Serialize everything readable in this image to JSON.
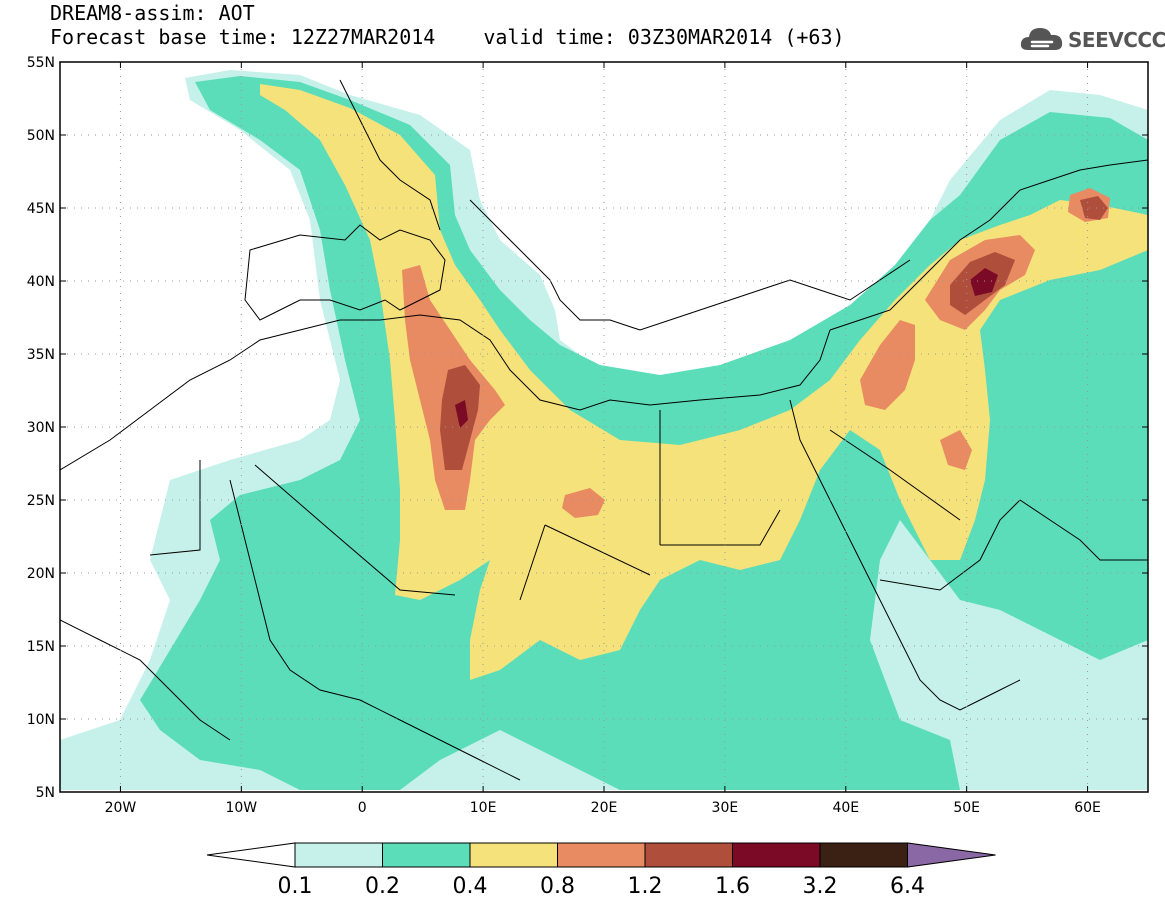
{
  "title": {
    "line1": "DREAM8-assim: AOT",
    "base_time": "Forecast base time: 12Z27MAR2014",
    "valid_time": "valid time: 03Z30MAR2014 (+63)"
  },
  "logo": {
    "text": "SEEVCCC",
    "icon": "cloud-icon",
    "color": "#555555"
  },
  "map": {
    "lon_range": [
      -25,
      65
    ],
    "lat_range": [
      5,
      55
    ],
    "lon_ticks": [
      {
        "value": -20,
        "label": "20W"
      },
      {
        "value": -10,
        "label": "10W"
      },
      {
        "value": 0,
        "label": "0"
      },
      {
        "value": 10,
        "label": "10E"
      },
      {
        "value": 20,
        "label": "20E"
      },
      {
        "value": 30,
        "label": "30E"
      },
      {
        "value": 40,
        "label": "40E"
      },
      {
        "value": 50,
        "label": "50E"
      },
      {
        "value": 60,
        "label": "60E"
      }
    ],
    "lat_ticks": [
      {
        "value": 55,
        "label": "55N"
      },
      {
        "value": 50,
        "label": "50N"
      },
      {
        "value": 45,
        "label": "45N"
      },
      {
        "value": 40,
        "label": "40N"
      },
      {
        "value": 35,
        "label": "35N"
      },
      {
        "value": 30,
        "label": "30N"
      },
      {
        "value": 25,
        "label": "25N"
      },
      {
        "value": 20,
        "label": "20N"
      },
      {
        "value": 15,
        "label": "15N"
      },
      {
        "value": 10,
        "label": "10N"
      },
      {
        "value": 5,
        "label": "5N"
      }
    ],
    "grid": true
  },
  "colorbar": {
    "levels": [
      "0.1",
      "0.2",
      "0.4",
      "0.8",
      "1.2",
      "1.6",
      "3.2",
      "6.4"
    ],
    "colors": [
      "#c5f1ea",
      "#5cddb9",
      "#f6e27a",
      "#e88a62",
      "#b04e3c",
      "#7a0a25",
      "#3a2113",
      "#8a68a6"
    ],
    "under_color": "#ffffff",
    "over_color": "#8a68a6"
  }
}
